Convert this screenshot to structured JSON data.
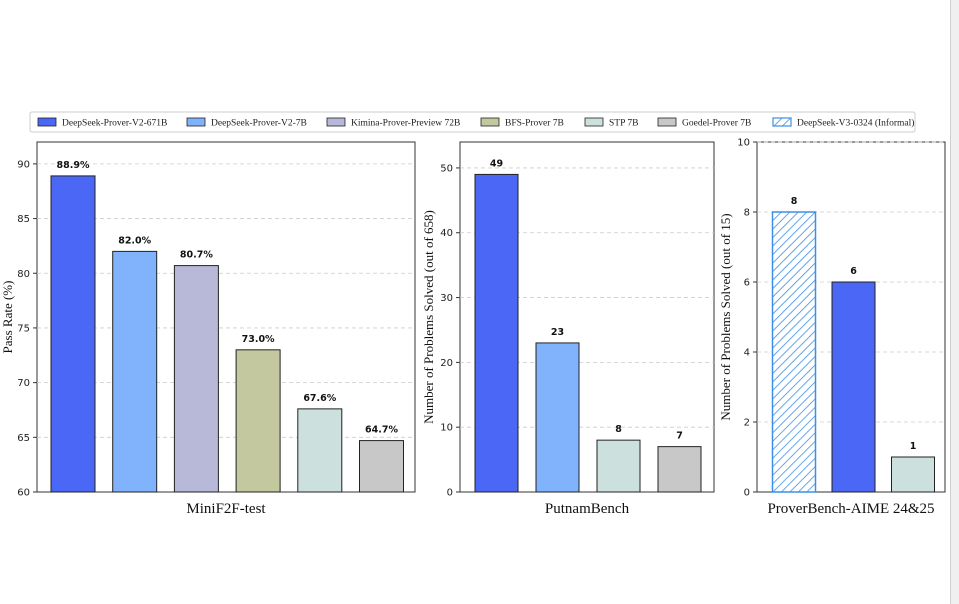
{
  "legend": {
    "items": [
      {
        "label": "DeepSeek-Prover-V2-671B",
        "color": "#4a67f5",
        "hatch": false
      },
      {
        "label": "DeepSeek-Prover-V2-7B",
        "color": "#80b3fb",
        "hatch": false
      },
      {
        "label": "Kimina-Prover-Preview 72B",
        "color": "#b8b8d8",
        "hatch": false
      },
      {
        "label": "BFS-Prover 7B",
        "color": "#c3c89e",
        "hatch": false
      },
      {
        "label": "STP 7B",
        "color": "#cce0de",
        "hatch": false
      },
      {
        "label": "Goedel-Prover 7B",
        "color": "#c8c8c8",
        "hatch": false
      },
      {
        "label": "DeepSeek-V3-0324 (Informal)",
        "color": "#3c8fe6",
        "hatch": true
      }
    ]
  },
  "chart_data": [
    {
      "type": "bar",
      "title": "MiniF2F-test",
      "xlabel": "MiniF2F-test",
      "ylabel": "Pass Rate (%)",
      "ylim": [
        60,
        92
      ],
      "yticks": [
        60,
        65,
        70,
        75,
        80,
        85,
        90
      ],
      "grid": true,
      "categories": [
        "DeepSeek-Prover-V2-671B",
        "DeepSeek-Prover-V2-7B",
        "Kimina-Prover-Preview 72B",
        "BFS-Prover 7B",
        "STP 7B",
        "Goedel-Prover 7B"
      ],
      "values": [
        88.9,
        82.0,
        80.7,
        73.0,
        67.6,
        64.7
      ],
      "labels": [
        "88.9%",
        "82.0%",
        "80.7%",
        "73.0%",
        "67.6%",
        "64.7%"
      ],
      "colors": [
        "#4a67f5",
        "#80b3fb",
        "#b8b8d8",
        "#c3c89e",
        "#cce0de",
        "#c8c8c8"
      ],
      "hatch": [
        false,
        false,
        false,
        false,
        false,
        false
      ]
    },
    {
      "type": "bar",
      "title": "PutnamBench",
      "xlabel": "PutnamBench",
      "ylabel": "Number of Problems Solved (out of 658)",
      "ylim": [
        0,
        54
      ],
      "yticks": [
        0,
        10,
        20,
        30,
        40,
        50
      ],
      "grid": true,
      "categories": [
        "DeepSeek-Prover-V2-671B",
        "DeepSeek-Prover-V2-7B",
        "STP 7B",
        "Goedel-Prover 7B"
      ],
      "values": [
        49,
        23,
        8,
        7
      ],
      "labels": [
        "49",
        "23",
        "8",
        "7"
      ],
      "colors": [
        "#4a67f5",
        "#80b3fb",
        "#cce0de",
        "#c8c8c8"
      ],
      "hatch": [
        false,
        false,
        false,
        false
      ]
    },
    {
      "type": "bar",
      "title": "ProverBench-AIME 24&25",
      "xlabel": "ProverBench-AIME 24&25",
      "ylabel": "Number of Problems Solved (out of 15)",
      "ylim": [
        0,
        10
      ],
      "yticks": [
        0,
        2,
        4,
        6,
        8,
        10
      ],
      "grid": true,
      "categories": [
        "DeepSeek-V3-0324 (Informal)",
        "DeepSeek-Prover-V2-671B",
        "STP 7B"
      ],
      "values": [
        8,
        6,
        1
      ],
      "labels": [
        "8",
        "6",
        "1"
      ],
      "colors": [
        "#3c8fe6",
        "#4a67f5",
        "#cce0de"
      ],
      "hatch": [
        true,
        false,
        false
      ]
    }
  ]
}
